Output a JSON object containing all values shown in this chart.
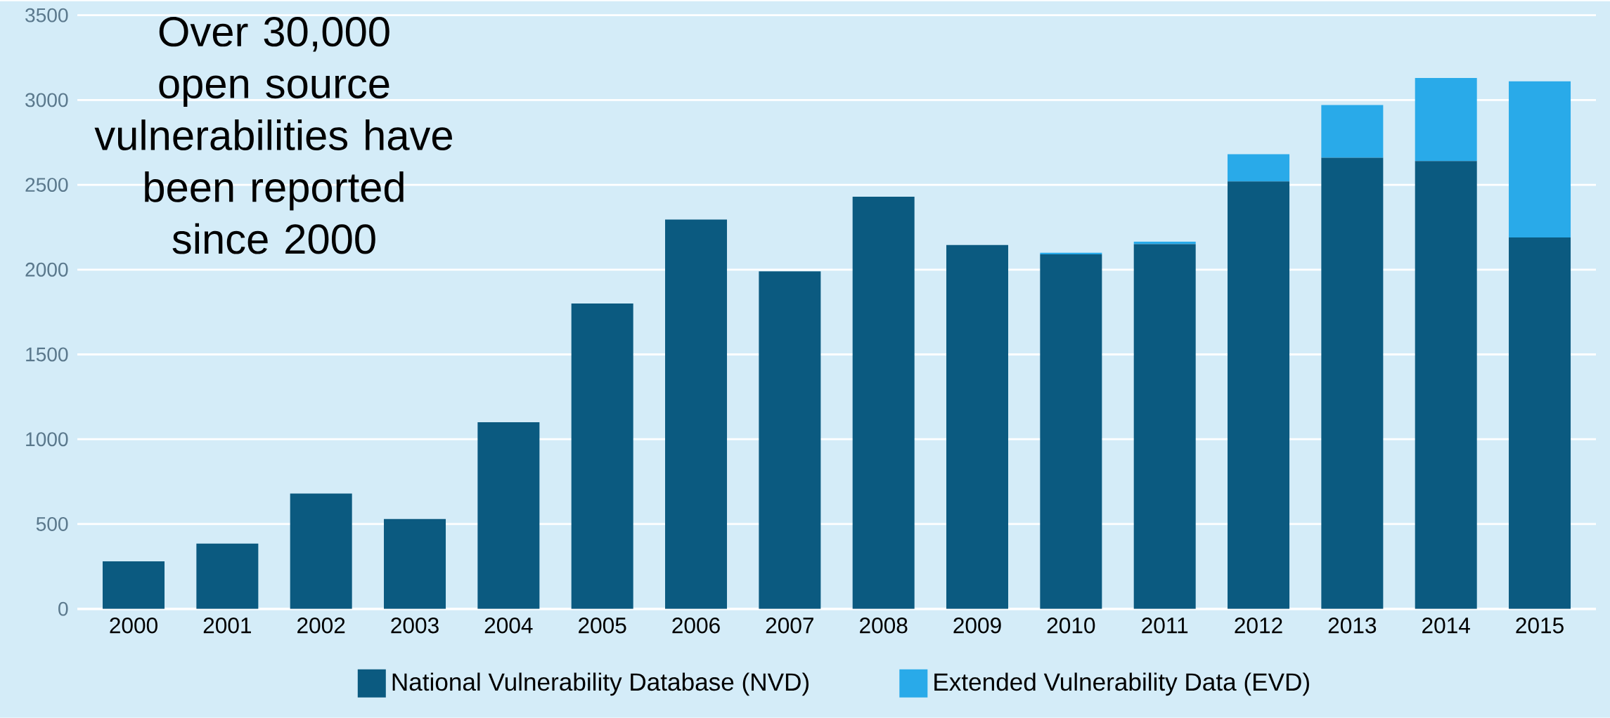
{
  "chart_data": {
    "type": "bar",
    "title": "Over 30,000 open source vulnerabilities have been reported since 2000",
    "categories": [
      "2000",
      "2001",
      "2002",
      "2003",
      "2004",
      "2005",
      "2006",
      "2007",
      "2008",
      "2009",
      "2010",
      "2011",
      "2012",
      "2013",
      "2014",
      "2015"
    ],
    "stacked": true,
    "series": [
      {
        "name": "National Vulnerability Database (NVD)",
        "color": "#0b5a80",
        "values": [
          280,
          385,
          680,
          530,
          1100,
          1800,
          2295,
          1990,
          2430,
          2145,
          2090,
          2150,
          2520,
          2660,
          2640,
          2190
        ]
      },
      {
        "name": "Extended Vulnerability Data (EVD)",
        "color": "#29aae9",
        "values": [
          0,
          0,
          0,
          0,
          0,
          0,
          0,
          0,
          0,
          0,
          10,
          15,
          160,
          310,
          490,
          920
        ]
      }
    ],
    "ylim": [
      0,
      3500
    ],
    "yticks": [
      0,
      500,
      1000,
      1500,
      2000,
      2500,
      3000,
      3500
    ],
    "grid": "y",
    "legend": "bottom"
  }
}
